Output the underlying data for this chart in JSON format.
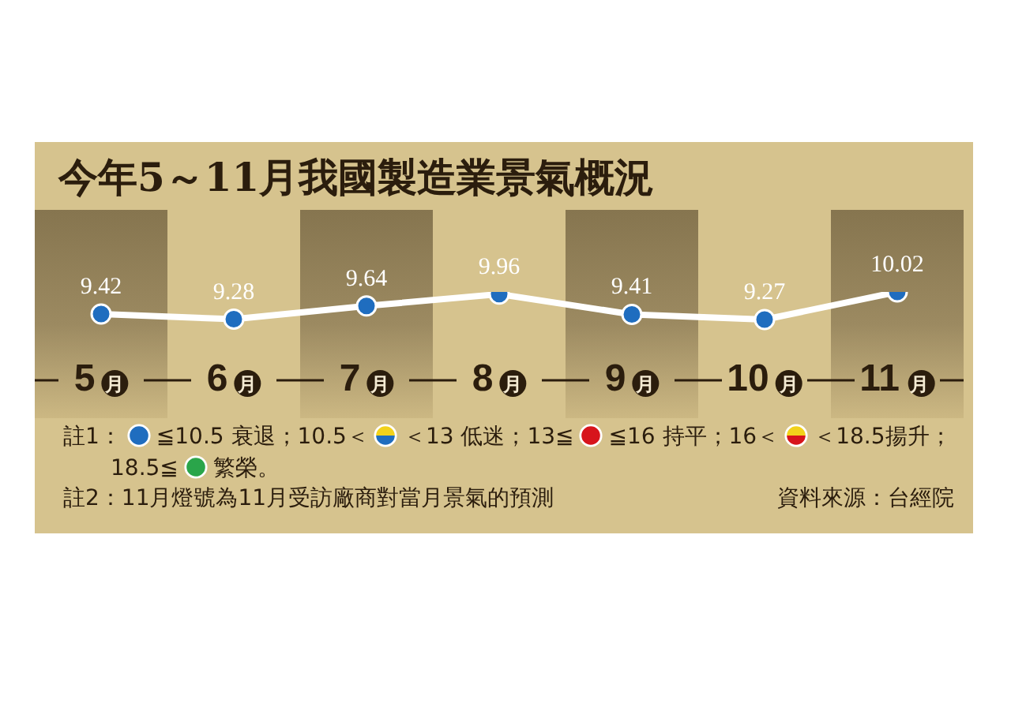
{
  "chart_data": {
    "type": "line",
    "title": "今年5～11月我國製造業景氣概況",
    "categories": [
      "5月",
      "6月",
      "7月",
      "8月",
      "9月",
      "10月",
      "11月"
    ],
    "series": [
      {
        "color": "#ffffff",
        "colors": [
          "#1f6dbf",
          "#1f6dbf",
          "#1f6dbf",
          "#1f6dbf",
          "#1f6dbf",
          "#1f6dbf",
          "#1f6dbf"
        ],
        "values": [
          9.42,
          9.28,
          9.64,
          9.96,
          9.41,
          9.27,
          10.02
        ]
      }
    ],
    "data_labels": true,
    "marker": "circle",
    "tick_labels": "x",
    "annotations": [
      "註1：",
      "≦10.5 衰退；10.5＜",
      "＜13 低迷；13≦",
      "≦16 持平；16＜",
      "＜18.5揚升；",
      "18.5≦",
      "繁榮。",
      "註2：11月燈號為11月受訪廠商對當月景氣的預測",
      "資料來源：台經院"
    ]
  }
}
